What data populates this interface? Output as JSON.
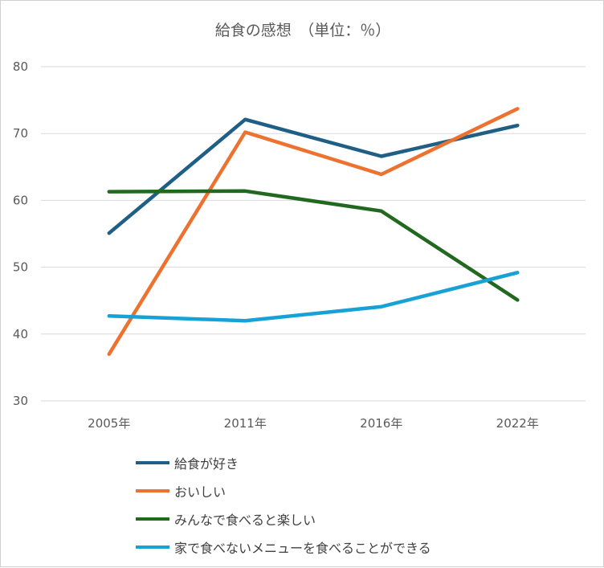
{
  "chart_data": {
    "type": "line",
    "title": "給食の感想　（単位：％）",
    "categories": [
      "2005年",
      "2011年",
      "2016年",
      "2022年"
    ],
    "ylim": [
      30,
      80
    ],
    "yticks": [
      30,
      40,
      50,
      60,
      70,
      80
    ],
    "grid": true,
    "legend_position": "bottom",
    "series": [
      {
        "name": "給食が好き",
        "color": "#1f5f85",
        "values": [
          55.1,
          72.1,
          66.6,
          71.2
        ]
      },
      {
        "name": "おいしい",
        "color": "#ed7230",
        "values": [
          37.0,
          70.2,
          63.9,
          73.7
        ]
      },
      {
        "name": "みんなで食べると楽しい",
        "color": "#20691f",
        "values": [
          61.3,
          61.4,
          58.4,
          45.1
        ]
      },
      {
        "name": "家で食べないメニューを食べることができる",
        "color": "#16a2d6",
        "values": [
          42.7,
          42.0,
          44.1,
          49.2
        ]
      }
    ]
  }
}
